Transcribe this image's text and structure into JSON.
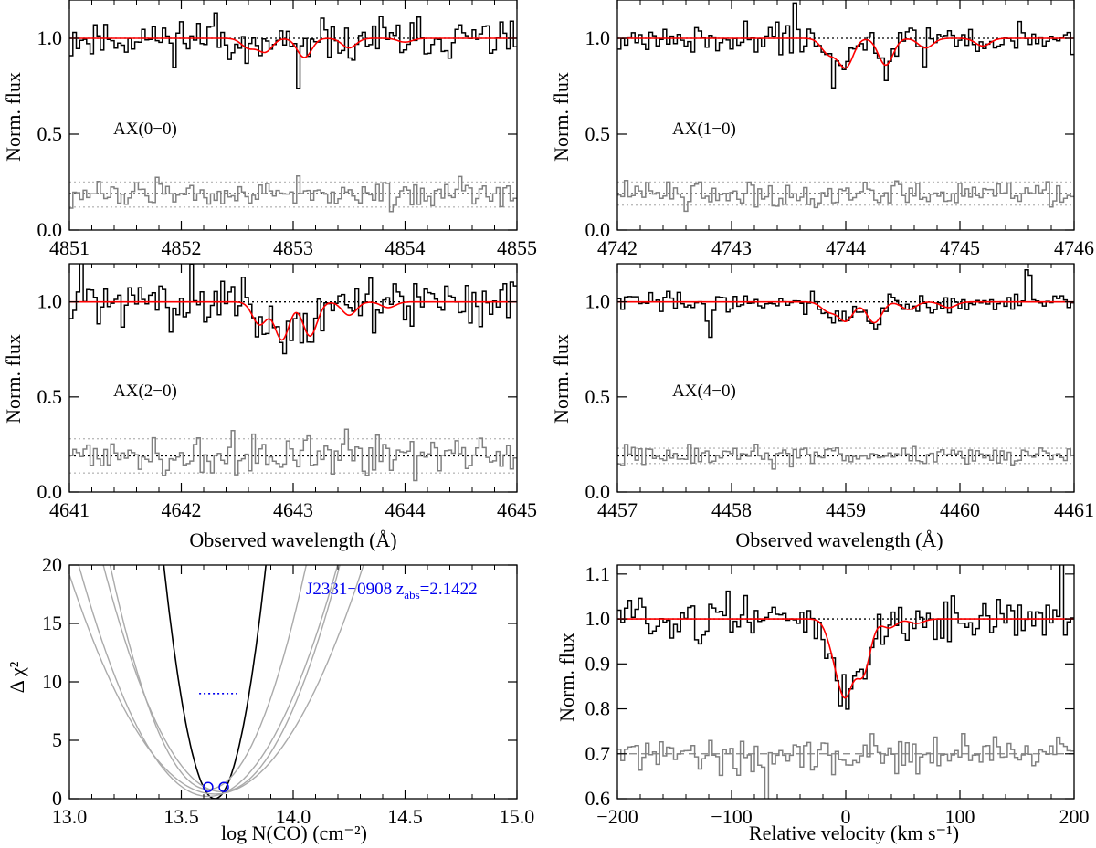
{
  "colors": {
    "data": "#000000",
    "model": "#ff0000",
    "residual": "#808080",
    "residual_band": "#bbbbbb",
    "annotation": "#0000ee",
    "contour_grey": "#aaaaaa"
  },
  "chart_data": [
    {
      "type": "line",
      "panel": "AX(0-0)",
      "label": "AX(0−0)",
      "ylabel": "Norm. flux",
      "xlabel": "",
      "xlim": [
        4851,
        4855
      ],
      "ylim": [
        0.0,
        1.2
      ],
      "xticks": [
        "4851",
        "4852",
        "4853",
        "4854",
        "4855"
      ],
      "yticks": [
        "0.0",
        "0.5",
        "1.0"
      ],
      "lines": [
        {
          "center": 4852.6,
          "depth": 0.05
        },
        {
          "center": 4852.75,
          "depth": 0.07
        },
        {
          "center": 4853.1,
          "depth": 0.1
        },
        {
          "center": 4853.5,
          "depth": 0.05
        },
        {
          "center": 4854.0,
          "depth": 0.02
        }
      ],
      "series": [
        {
          "role": "spectrum",
          "kind": "step",
          "baseline": 1.0,
          "seed": 11,
          "noise": 0.07,
          "spikes": [
            [
              4852.3,
              0.14
            ],
            [
              4853.05,
              -0.2
            ]
          ]
        },
        {
          "role": "model",
          "kind": "line"
        },
        {
          "role": "residual",
          "kind": "step",
          "offset": 0.19,
          "seed": 12,
          "noise": 0.05
        },
        {
          "role": "residual_band",
          "values": [
            0.12,
            0.25
          ]
        }
      ],
      "reference_lines": [
        1.0,
        0.19
      ]
    },
    {
      "type": "line",
      "panel": "AX(1-0)",
      "label": "AX(1−0)",
      "ylabel": "Norm. flux",
      "xlabel": "",
      "xlim": [
        4742,
        4746
      ],
      "ylim": [
        0.0,
        1.2
      ],
      "xticks": [
        "4742",
        "4743",
        "4744",
        "4745",
        "4746"
      ],
      "yticks": [
        "0.0",
        "0.5",
        "1.0"
      ],
      "lines": [
        {
          "center": 4743.85,
          "depth": 0.08
        },
        {
          "center": 4744.0,
          "depth": 0.15
        },
        {
          "center": 4744.35,
          "depth": 0.14
        },
        {
          "center": 4744.7,
          "depth": 0.05
        },
        {
          "center": 4745.2,
          "depth": 0.04
        }
      ],
      "series": [
        {
          "role": "spectrum",
          "kind": "step",
          "baseline": 1.0,
          "seed": 21,
          "noise": 0.05,
          "spikes": [
            [
              4743.55,
              0.22
            ],
            [
              4743.4,
              0.13
            ],
            [
              4743.9,
              -0.2
            ]
          ]
        },
        {
          "role": "model",
          "kind": "line"
        },
        {
          "role": "residual",
          "kind": "step",
          "offset": 0.19,
          "seed": 22,
          "noise": 0.05
        },
        {
          "role": "residual_band",
          "values": [
            0.13,
            0.25
          ]
        }
      ],
      "reference_lines": [
        1.0,
        0.19
      ]
    },
    {
      "type": "line",
      "panel": "AX(2-0)",
      "label": "AX(2−0)",
      "ylabel": "Norm. flux",
      "xlabel": "Observed wavelength (Å)",
      "xlim": [
        4641,
        4645
      ],
      "ylim": [
        0.0,
        1.2
      ],
      "xticks": [
        "4641",
        "4642",
        "4643",
        "4644",
        "4645"
      ],
      "yticks": [
        "0.0",
        "0.5",
        "1.0"
      ],
      "lines": [
        {
          "center": 4642.7,
          "depth": 0.12
        },
        {
          "center": 4642.9,
          "depth": 0.2
        },
        {
          "center": 4643.15,
          "depth": 0.18
        },
        {
          "center": 4643.5,
          "depth": 0.07
        },
        {
          "center": 4643.85,
          "depth": 0.03
        }
      ],
      "series": [
        {
          "role": "spectrum",
          "kind": "step",
          "baseline": 1.0,
          "seed": 31,
          "noise": 0.09,
          "spikes": [
            [
              4641.1,
              0.18
            ],
            [
              4642.1,
              0.18
            ],
            [
              4641.5,
              -0.12
            ]
          ]
        },
        {
          "role": "model",
          "kind": "line"
        },
        {
          "role": "residual",
          "kind": "step",
          "offset": 0.19,
          "seed": 32,
          "noise": 0.08
        },
        {
          "role": "residual_band",
          "values": [
            0.1,
            0.28
          ]
        }
      ],
      "reference_lines": [
        1.0,
        0.19
      ]
    },
    {
      "type": "line",
      "panel": "AX(4-0)",
      "label": "AX(4−0)",
      "ylabel": "Norm. flux",
      "xlabel": "Observed wavelength (Å)",
      "xlim": [
        4457,
        4461
      ],
      "ylim": [
        0.0,
        1.2
      ],
      "xticks": [
        "4457",
        "4458",
        "4459",
        "4460",
        "4461"
      ],
      "yticks": [
        "0.0",
        "0.5",
        "1.0"
      ],
      "lines": [
        {
          "center": 4458.85,
          "depth": 0.05
        },
        {
          "center": 4459.0,
          "depth": 0.1
        },
        {
          "center": 4459.25,
          "depth": 0.11
        },
        {
          "center": 4459.55,
          "depth": 0.04
        },
        {
          "center": 4459.9,
          "depth": 0.03
        }
      ],
      "series": [
        {
          "role": "spectrum",
          "kind": "step",
          "baseline": 1.0,
          "seed": 41,
          "noise": 0.04,
          "spikes": [
            [
              4457.8,
              -0.15
            ],
            [
              4460.6,
              0.12
            ]
          ]
        },
        {
          "role": "model",
          "kind": "line"
        },
        {
          "role": "residual",
          "kind": "step",
          "offset": 0.19,
          "seed": 42,
          "noise": 0.04
        },
        {
          "role": "residual_band",
          "values": [
            0.15,
            0.23
          ]
        }
      ],
      "reference_lines": [
        1.0,
        0.19
      ]
    },
    {
      "type": "line",
      "panel": "chi2",
      "ylabel": "Δ χ²",
      "xlabel": "log N(CO) (cm⁻²)",
      "xlim": [
        13.0,
        15.0
      ],
      "ylim": [
        0,
        20
      ],
      "xticks": [
        "13.0",
        "13.5",
        "14.0",
        "14.5",
        "15.0"
      ],
      "yticks": [
        "0",
        "5",
        "10",
        "15",
        "20"
      ],
      "annotation": {
        "prefix": "J2331−0908 z",
        "subscript": "abs",
        "suffix": "=2.1422"
      },
      "series": [
        {
          "role": "total",
          "kind": "parabola",
          "min_x": 13.65,
          "min_y": 0.0,
          "width": 0.051
        },
        {
          "role": "line",
          "kind": "parabola",
          "min_x": 13.62,
          "min_y": 0.2,
          "width": 0.13
        },
        {
          "role": "line",
          "kind": "parabola",
          "min_x": 13.65,
          "min_y": 0.4,
          "width": 0.15
        },
        {
          "role": "line",
          "kind": "parabola",
          "min_x": 13.68,
          "min_y": 0.6,
          "width": 0.12
        },
        {
          "role": "line",
          "kind": "parabola",
          "min_x": 13.62,
          "min_y": 0.8,
          "width": 0.1
        }
      ],
      "markers": [
        {
          "x": 13.62,
          "y": 1.0
        },
        {
          "x": 13.69,
          "y": 1.0
        }
      ],
      "confidence_line": {
        "y": 9.0,
        "x": [
          13.58,
          13.75
        ]
      }
    },
    {
      "type": "line",
      "panel": "velocity",
      "ylabel": "Norm. flux",
      "xlabel": "Relative velocity (km s⁻¹)",
      "xlim": [
        -200,
        200
      ],
      "ylim": [
        0.6,
        1.12
      ],
      "xticks": [
        "−200",
        "−100",
        "0",
        "100",
        "200"
      ],
      "yticks": [
        "0.6",
        "0.7",
        "0.8",
        "0.9",
        "1.0",
        "1.1"
      ],
      "lines": [
        {
          "center": -10,
          "depth": 0.06
        },
        {
          "center": 0,
          "depth": 0.15
        },
        {
          "center": 15,
          "depth": 0.12
        },
        {
          "center": 38,
          "depth": 0.02
        },
        {
          "center": 62,
          "depth": 0.01
        }
      ],
      "series": [
        {
          "role": "spectrum",
          "kind": "step",
          "baseline": 1.0,
          "seed": 51,
          "noise": 0.035,
          "spikes": [
            [
              -190,
              0.05
            ],
            [
              190,
              0.06
            ]
          ]
        },
        {
          "role": "model",
          "kind": "line"
        },
        {
          "role": "residual",
          "kind": "step",
          "offset": 0.7,
          "seed": 52,
          "noise": 0.03,
          "spikes": [
            [
              -70,
              -0.07
            ]
          ]
        }
      ],
      "reference_lines": [
        1.0,
        0.7
      ]
    }
  ]
}
